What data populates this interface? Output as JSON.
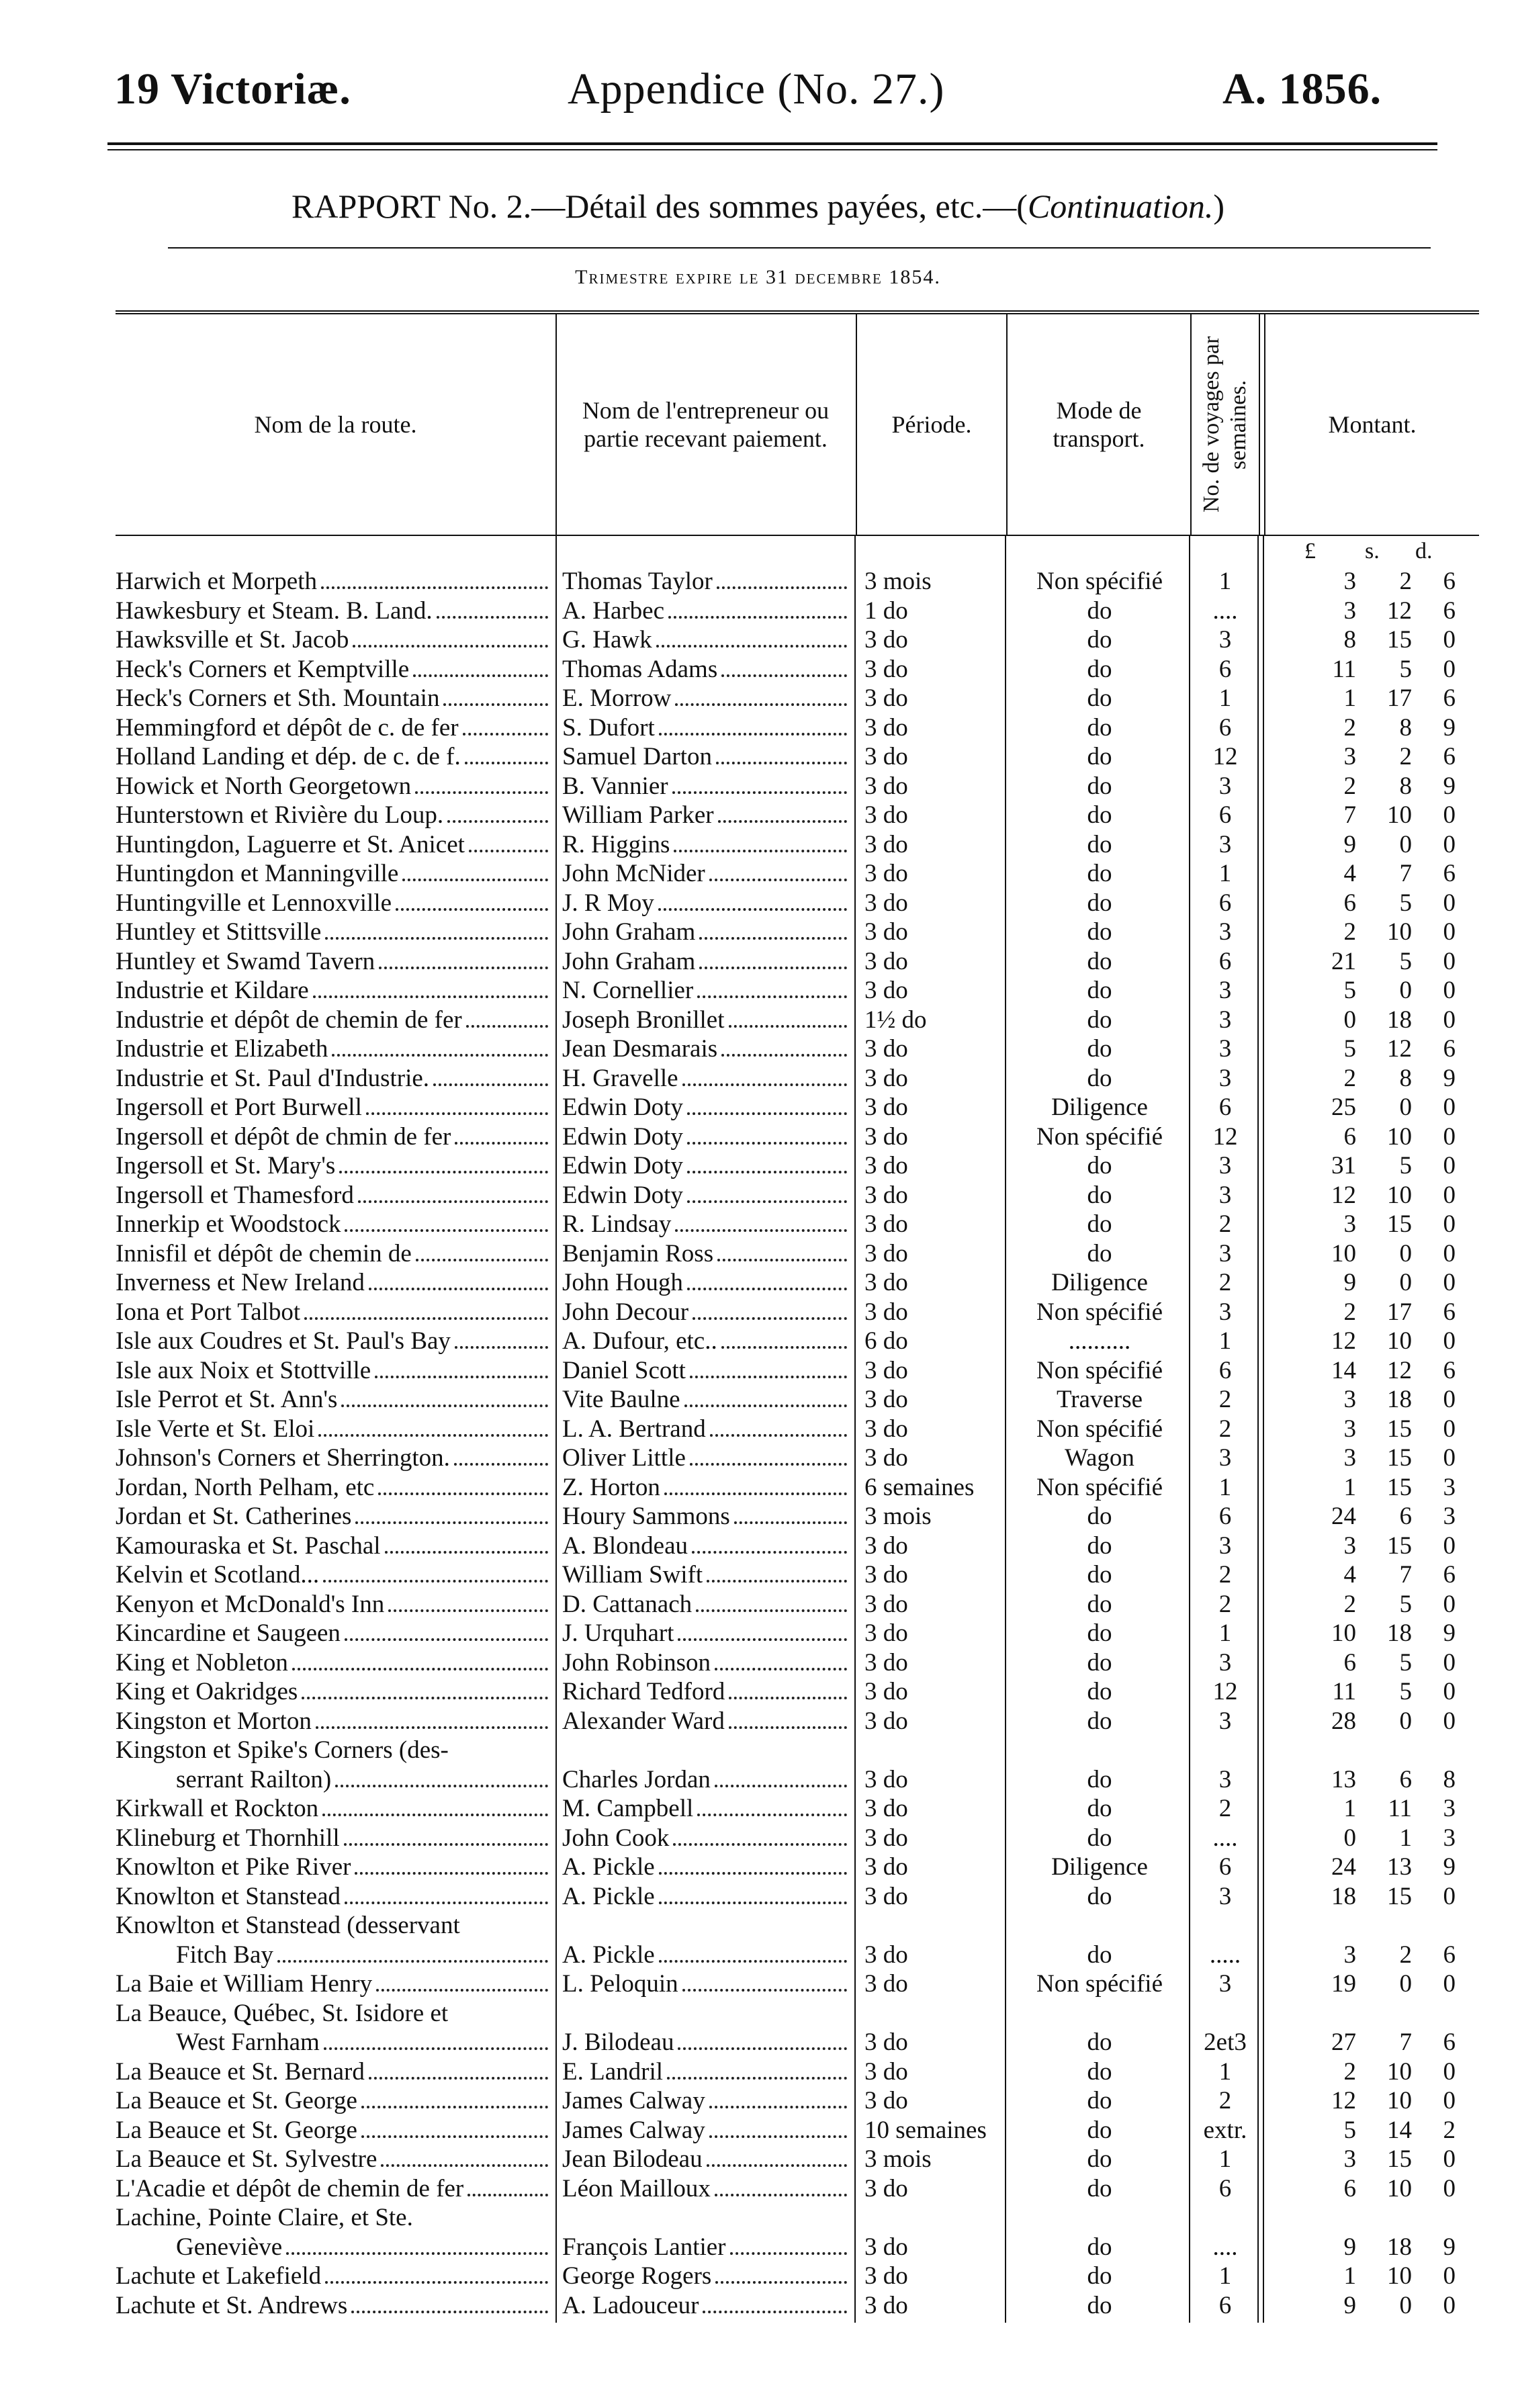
{
  "header": {
    "left": "19 Victoriæ.",
    "center": "Appendice (No. 27.)",
    "right": "A. 1856."
  },
  "title": {
    "main": "RAPPORT No. 2.—Détail des sommes payées, etc.—(",
    "italic": "Continuation.",
    "close": ")"
  },
  "subtitle": "Trimestre expire le 31 decembre 1854.",
  "columns": {
    "route": "Nom de la route.",
    "contractor": "Nom de l'entrepreneur ou partie recevant paiement.",
    "period": "Période.",
    "mode": "Mode de transport.",
    "voyages": "No. de voyages par semaines.",
    "amount": "Montant.",
    "pounds": "£",
    "shillings": "s.",
    "pence": "d."
  },
  "rows": [
    {
      "route": "Harwich et Morpeth",
      "contractor": "Thomas Taylor",
      "period": "3 mois",
      "mode": "Non spécifié",
      "voyages": "1",
      "l": "3",
      "s": "2",
      "d": "6"
    },
    {
      "route": "Hawkesbury et Steam. B. Land.",
      "contractor": "A. Harbec",
      "period": "1 do",
      "mode": "do",
      "voyages": "....",
      "l": "3",
      "s": "12",
      "d": "6"
    },
    {
      "route": "Hawksville et St. Jacob",
      "contractor": "G. Hawk",
      "period": "3 do",
      "mode": "do",
      "voyages": "3",
      "l": "8",
      "s": "15",
      "d": "0"
    },
    {
      "route": "Heck's Corners et Kemptville",
      "contractor": "Thomas Adams",
      "period": "3 do",
      "mode": "do",
      "voyages": "6",
      "l": "11",
      "s": "5",
      "d": "0"
    },
    {
      "route": "Heck's Corners et Sth. Mountain",
      "contractor": "E. Morrow",
      "period": "3 do",
      "mode": "do",
      "voyages": "1",
      "l": "1",
      "s": "17",
      "d": "6"
    },
    {
      "route": "Hemmingford et dépôt de c. de fer",
      "contractor": "S. Dufort",
      "period": "3 do",
      "mode": "do",
      "voyages": "6",
      "l": "2",
      "s": "8",
      "d": "9"
    },
    {
      "route": "Holland Landing et dép. de c. de f.",
      "contractor": "Samuel Darton",
      "period": "3 do",
      "mode": "do",
      "voyages": "12",
      "l": "3",
      "s": "2",
      "d": "6"
    },
    {
      "route": "Howick et North Georgetown",
      "contractor": "B. Vannier",
      "period": "3 do",
      "mode": "do",
      "voyages": "3",
      "l": "2",
      "s": "8",
      "d": "9"
    },
    {
      "route": "Hunterstown et Rivière du Loup.",
      "contractor": "William Parker",
      "period": "3 do",
      "mode": "do",
      "voyages": "6",
      "l": "7",
      "s": "10",
      "d": "0"
    },
    {
      "route": "Huntingdon, Laguerre et St. Anicet",
      "contractor": "R. Higgins",
      "period": "3 do",
      "mode": "do",
      "voyages": "3",
      "l": "9",
      "s": "0",
      "d": "0"
    },
    {
      "route": "Huntingdon et Manningville",
      "contractor": "John McNider",
      "period": "3 do",
      "mode": "do",
      "voyages": "1",
      "l": "4",
      "s": "7",
      "d": "6"
    },
    {
      "route": "Huntingville et Lennoxville",
      "contractor": "J. R Moy",
      "period": "3 do",
      "mode": "do",
      "voyages": "6",
      "l": "6",
      "s": "5",
      "d": "0"
    },
    {
      "route": "Huntley et Stittsville",
      "contractor": "John Graham",
      "period": "3 do",
      "mode": "do",
      "voyages": "3",
      "l": "2",
      "s": "10",
      "d": "0"
    },
    {
      "route": "Huntley et Swamd Tavern",
      "contractor": "John Graham",
      "period": "3 do",
      "mode": "do",
      "voyages": "6",
      "l": "21",
      "s": "5",
      "d": "0"
    },
    {
      "route": "Industrie et Kildare",
      "contractor": "N. Cornellier",
      "period": "3 do",
      "mode": "do",
      "voyages": "3",
      "l": "5",
      "s": "0",
      "d": "0"
    },
    {
      "route": "Industrie et dépôt de chemin de fer",
      "contractor": "Joseph Bronillet",
      "period": "1½ do",
      "mode": "do",
      "voyages": "3",
      "l": "0",
      "s": "18",
      "d": "0"
    },
    {
      "route": "Industrie et Elizabeth",
      "contractor": "Jean Desmarais",
      "period": "3 do",
      "mode": "do",
      "voyages": "3",
      "l": "5",
      "s": "12",
      "d": "6"
    },
    {
      "route": "Industrie et St. Paul d'Industrie.",
      "contractor": "H. Gravelle",
      "period": "3 do",
      "mode": "do",
      "voyages": "3",
      "l": "2",
      "s": "8",
      "d": "9"
    },
    {
      "route": "Ingersoll et Port Burwell",
      "contractor": "Edwin Doty",
      "period": "3 do",
      "mode": "Diligence",
      "voyages": "6",
      "l": "25",
      "s": "0",
      "d": "0"
    },
    {
      "route": "Ingersoll et dépôt de chmin de fer",
      "contractor": "Edwin Doty",
      "period": "3 do",
      "mode": "Non spécifié",
      "voyages": "12",
      "l": "6",
      "s": "10",
      "d": "0"
    },
    {
      "route": "Ingersoll et St. Mary's",
      "contractor": "Edwin Doty",
      "period": "3 do",
      "mode": "do",
      "voyages": "3",
      "l": "31",
      "s": "5",
      "d": "0"
    },
    {
      "route": "Ingersoll et Thamesford",
      "contractor": "Edwin Doty",
      "period": "3 do",
      "mode": "do",
      "voyages": "3",
      "l": "12",
      "s": "10",
      "d": "0"
    },
    {
      "route": "Innerkip et Woodstock",
      "contractor": "R. Lindsay",
      "period": "3 do",
      "mode": "do",
      "voyages": "2",
      "l": "3",
      "s": "15",
      "d": "0"
    },
    {
      "route": "Innisfil et dépôt de chemin de",
      "contractor": "Benjamin Ross",
      "period": "3 do",
      "mode": "do",
      "voyages": "3",
      "l": "10",
      "s": "0",
      "d": "0"
    },
    {
      "route": "Inverness et New Ireland",
      "contractor": "John Hough",
      "period": "3 do",
      "mode": "Diligence",
      "voyages": "2",
      "l": "9",
      "s": "0",
      "d": "0"
    },
    {
      "route": "Iona et Port Talbot",
      "contractor": "John Decour",
      "period": "3 do",
      "mode": "Non spécifié",
      "voyages": "3",
      "l": "2",
      "s": "17",
      "d": "6"
    },
    {
      "route": "Isle aux Coudres et St. Paul's Bay",
      "contractor": "A. Dufour, etc..",
      "period": "6 do",
      "mode": "..........",
      "voyages": "1",
      "l": "12",
      "s": "10",
      "d": "0"
    },
    {
      "route": "Isle aux Noix et Stottville",
      "contractor": "Daniel Scott",
      "period": "3 do",
      "mode": "Non spécifié",
      "voyages": "6",
      "l": "14",
      "s": "12",
      "d": "6"
    },
    {
      "route": "Isle Perrot et St. Ann's",
      "contractor": "Vite Baulne",
      "period": "3 do",
      "mode": "Traverse",
      "voyages": "2",
      "l": "3",
      "s": "18",
      "d": "0"
    },
    {
      "route": "Isle Verte et St. Eloi",
      "contractor": "L. A. Bertrand",
      "period": "3 do",
      "mode": "Non spécifié",
      "voyages": "2",
      "l": "3",
      "s": "15",
      "d": "0"
    },
    {
      "route": "Johnson's Corners et Sherrington.",
      "contractor": "Oliver Little",
      "period": "3 do",
      "mode": "Wagon",
      "voyages": "3",
      "l": "3",
      "s": "15",
      "d": "0"
    },
    {
      "route": "Jordan, North Pelham, etc",
      "contractor": "Z. Horton",
      "period": "6 semaines",
      "mode": "Non spécifié",
      "voyages": "1",
      "l": "1",
      "s": "15",
      "d": "3"
    },
    {
      "route": "Jordan et St. Catherines",
      "contractor": "Houry Sammons",
      "period": "3 mois",
      "mode": "do",
      "voyages": "6",
      "l": "24",
      "s": "6",
      "d": "3"
    },
    {
      "route": "Kamouraska et St. Paschal",
      "contractor": "A. Blondeau",
      "period": "3 do",
      "mode": "do",
      "voyages": "3",
      "l": "3",
      "s": "15",
      "d": "0"
    },
    {
      "route": "Kelvin et Scotland...",
      "contractor": "William Swift",
      "period": "3 do",
      "mode": "do",
      "voyages": "2",
      "l": "4",
      "s": "7",
      "d": "6"
    },
    {
      "route": "Kenyon et McDonald's Inn",
      "contractor": "D. Cattanach",
      "period": "3 do",
      "mode": "do",
      "voyages": "2",
      "l": "2",
      "s": "5",
      "d": "0"
    },
    {
      "route": "Kincardine et Saugeen",
      "contractor": "J. Urquhart",
      "period": "3 do",
      "mode": "do",
      "voyages": "1",
      "l": "10",
      "s": "18",
      "d": "9"
    },
    {
      "route": "King et Nobleton",
      "contractor": "John Robinson",
      "period": "3 do",
      "mode": "do",
      "voyages": "3",
      "l": "6",
      "s": "5",
      "d": "0"
    },
    {
      "route": "King et Oakridges",
      "contractor": "Richard Tedford",
      "period": "3 do",
      "mode": "do",
      "voyages": "12",
      "l": "11",
      "s": "5",
      "d": "0"
    },
    {
      "route": "Kingston et Morton",
      "contractor": "Alexander Ward",
      "period": "3 do",
      "mode": "do",
      "voyages": "3",
      "l": "28",
      "s": "0",
      "d": "0"
    },
    {
      "route": "Kingston et Spike's Corners (des-",
      "route2": "serrant Railton)",
      "contractor": "Charles Jordan",
      "period": "3 do",
      "mode": "do",
      "voyages": "3",
      "l": "13",
      "s": "6",
      "d": "8"
    },
    {
      "route": "Kirkwall et Rockton",
      "contractor": "M. Campbell",
      "period": "3 do",
      "mode": "do",
      "voyages": "2",
      "l": "1",
      "s": "11",
      "d": "3"
    },
    {
      "route": "Klineburg et Thornhill",
      "contractor": "John Cook",
      "period": "3 do",
      "mode": "do",
      "voyages": "....",
      "l": "0",
      "s": "1",
      "d": "3"
    },
    {
      "route": "Knowlton et Pike River",
      "contractor": "A. Pickle",
      "period": "3 do",
      "mode": "Diligence",
      "voyages": "6",
      "l": "24",
      "s": "13",
      "d": "9"
    },
    {
      "route": "Knowlton et Stanstead",
      "contractor": "A. Pickle",
      "period": "3 do",
      "mode": "do",
      "voyages": "3",
      "l": "18",
      "s": "15",
      "d": "0"
    },
    {
      "route": "Knowlton et Stanstead (desservant",
      "route2": "Fitch Bay",
      "contractor": "A. Pickle",
      "period": "3 do",
      "mode": "do",
      "voyages": ".....",
      "l": "3",
      "s": "2",
      "d": "6"
    },
    {
      "route": "La Baie et William Henry",
      "contractor": "L. Peloquin",
      "period": "3 do",
      "mode": "Non spécifié",
      "voyages": "3",
      "l": "19",
      "s": "0",
      "d": "0"
    },
    {
      "route": "La Beauce, Québec, St. Isidore et",
      "route2": "West Farnham",
      "contractor": "J. Bilodeau",
      "period": "3 do",
      "mode": "do",
      "voyages": "2et3",
      "l": "27",
      "s": "7",
      "d": "6"
    },
    {
      "route": "La Beauce et St. Bernard",
      "contractor": "E. Landril",
      "period": "3 do",
      "mode": "do",
      "voyages": "1",
      "l": "2",
      "s": "10",
      "d": "0"
    },
    {
      "route": "La Beauce et St. George",
      "contractor": "James Calway",
      "period": "3 do",
      "mode": "do",
      "voyages": "2",
      "l": "12",
      "s": "10",
      "d": "0"
    },
    {
      "route": "La Beauce et St. George",
      "contractor": "James Calway",
      "period": "10 semaines",
      "mode": "do",
      "voyages": "extr.",
      "l": "5",
      "s": "14",
      "d": "2"
    },
    {
      "route": "La Beauce et St. Sylvestre",
      "contractor": "Jean Bilodeau",
      "period": "3 mois",
      "mode": "do",
      "voyages": "1",
      "l": "3",
      "s": "15",
      "d": "0"
    },
    {
      "route": "L'Acadie et dépôt de chemin de fer",
      "contractor": "Léon Mailloux",
      "period": "3 do",
      "mode": "do",
      "voyages": "6",
      "l": "6",
      "s": "10",
      "d": "0"
    },
    {
      "route": "Lachine, Pointe Claire, et Ste.",
      "route2": "Geneviève",
      "contractor": "François Lantier",
      "period": "3 do",
      "mode": "do",
      "voyages": "....",
      "l": "9",
      "s": "18",
      "d": "9"
    },
    {
      "route": "Lachute et Lakefield",
      "contractor": "George Rogers",
      "period": "3 do",
      "mode": "do",
      "voyages": "1",
      "l": "1",
      "s": "10",
      "d": "0"
    },
    {
      "route": "Lachute et St. Andrews",
      "contractor": "A. Ladouceur",
      "period": "3 do",
      "mode": "do",
      "voyages": "6",
      "l": "9",
      "s": "0",
      "d": "0"
    }
  ]
}
